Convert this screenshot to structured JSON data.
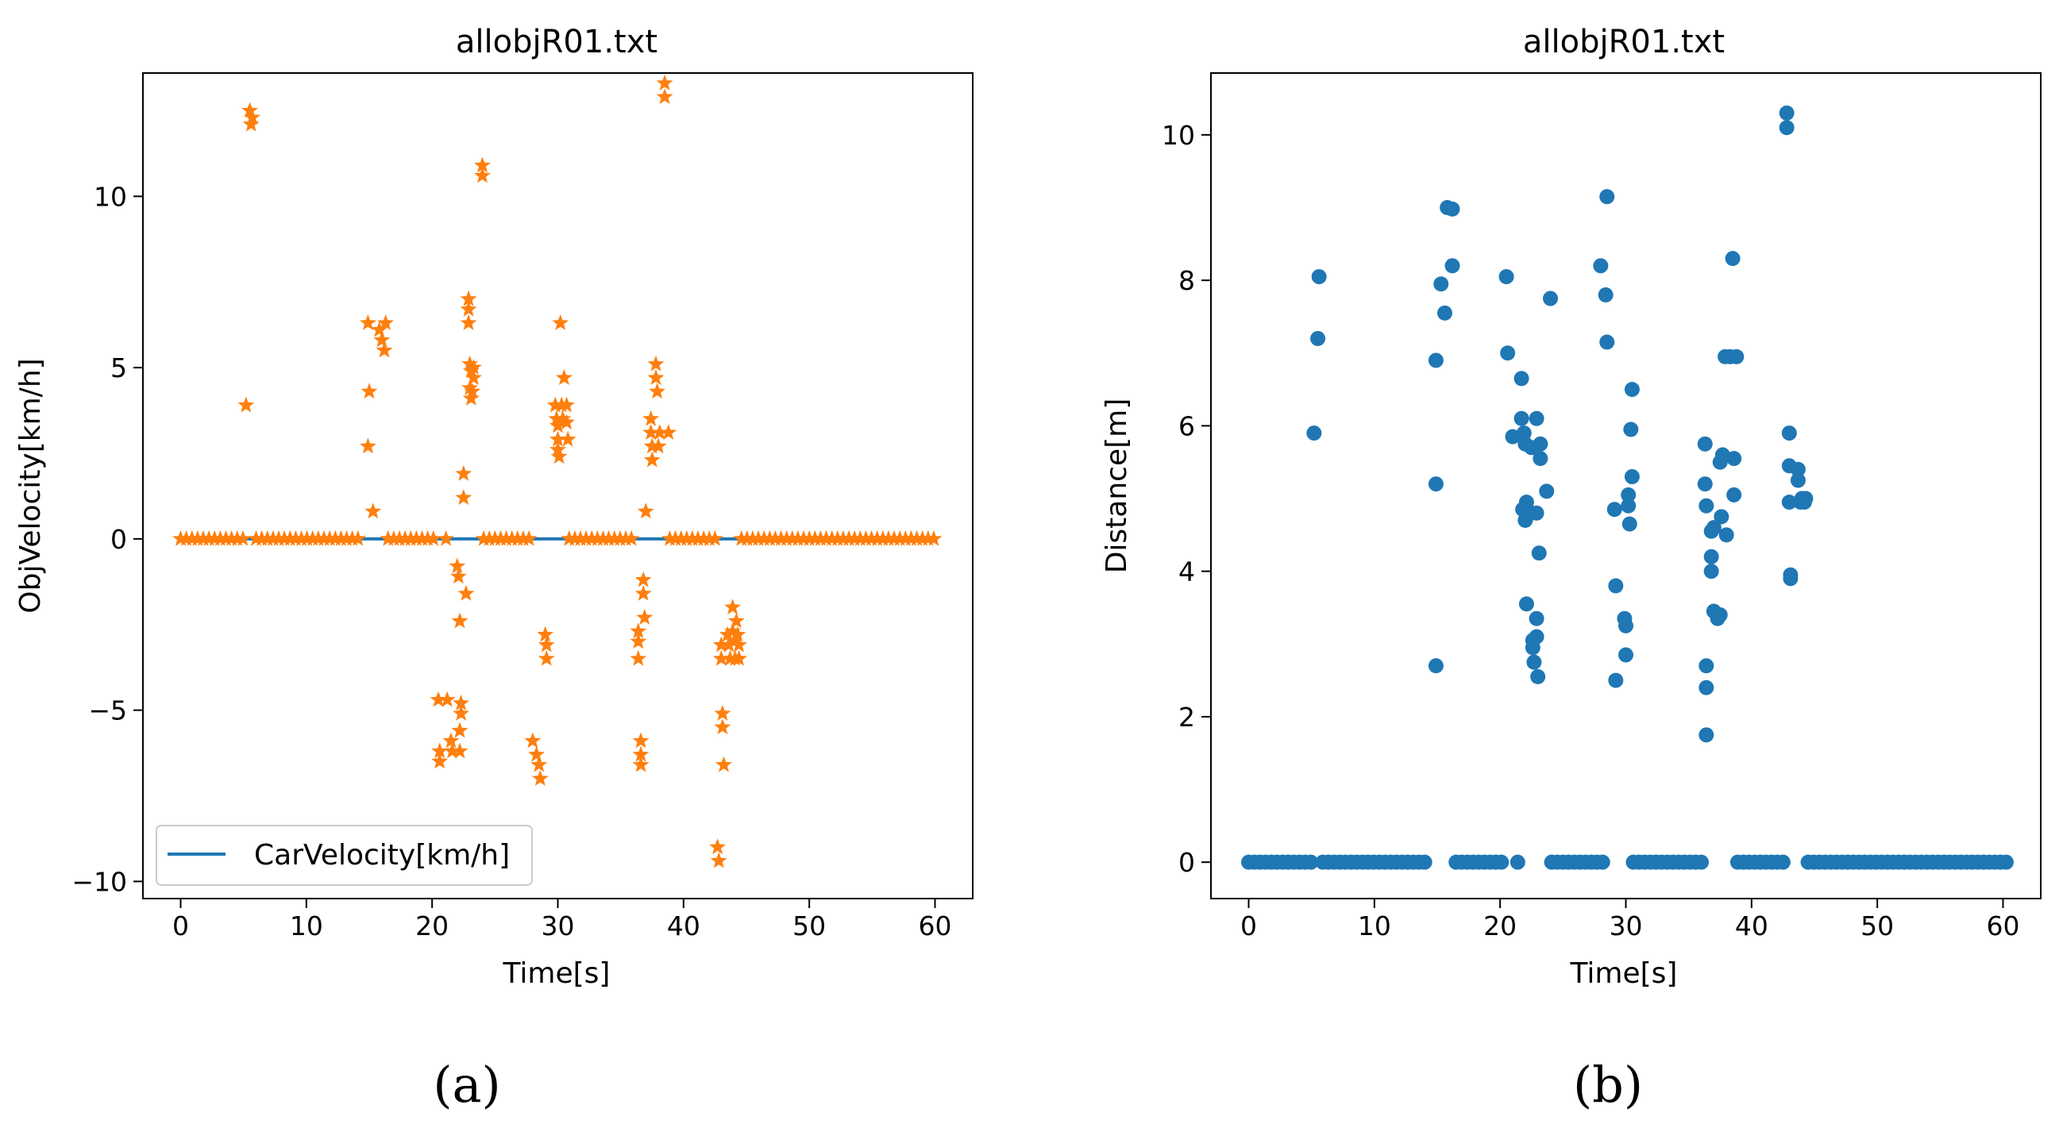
{
  "figure": {
    "panel_labels": [
      "(a)",
      "(b)"
    ]
  },
  "chart_data": [
    {
      "type": "scatter",
      "title": "allobjR01.txt",
      "xlabel": "Time[s]",
      "ylabel": "ObjVelocity[km/h]",
      "xlim": [
        -3,
        63
      ],
      "ylim": [
        -10.5,
        13.6
      ],
      "xticks": [
        0,
        10,
        20,
        30,
        40,
        50,
        60
      ],
      "xtick_labels": [
        "0",
        "10",
        "20",
        "30",
        "40",
        "50",
        "60"
      ],
      "yticks": [
        -10,
        -5,
        0,
        5,
        10
      ],
      "ytick_labels": [
        "−10",
        "−5",
        "0",
        "5",
        "10"
      ],
      "legend": {
        "placement": "lower-left",
        "entries": [
          "CarVelocity[km/h]"
        ]
      },
      "line_series": {
        "name": "CarVelocity[km/h]",
        "color": "#1f77b4",
        "x": [
          0,
          60.2
        ],
        "y": [
          0,
          0
        ]
      },
      "series": [
        {
          "marker": "star",
          "color": "#ff7f0e",
          "points": [
            [
              5.2,
              3.9
            ],
            [
              5.5,
              12.5
            ],
            [
              5.6,
              12.1
            ],
            [
              5.7,
              12.3
            ],
            [
              14.9,
              6.3
            ],
            [
              15.0,
              4.3
            ],
            [
              14.9,
              2.7
            ],
            [
              15.3,
              0.8
            ],
            [
              15.8,
              6.1
            ],
            [
              16.0,
              5.8
            ],
            [
              16.2,
              5.5
            ],
            [
              16.3,
              6.3
            ],
            [
              20.5,
              -4.7
            ],
            [
              20.6,
              -6.2
            ],
            [
              20.6,
              -6.5
            ],
            [
              21.2,
              -4.7
            ],
            [
              21.5,
              -5.9
            ],
            [
              21.6,
              -6.2
            ],
            [
              22.0,
              -0.8
            ],
            [
              22.1,
              -1.1
            ],
            [
              22.2,
              -2.4
            ],
            [
              22.3,
              -4.8
            ],
            [
              22.3,
              -5.1
            ],
            [
              22.2,
              -5.6
            ],
            [
              22.2,
              -6.2
            ],
            [
              22.5,
              1.9
            ],
            [
              22.5,
              1.2
            ],
            [
              22.7,
              -1.6
            ],
            [
              22.9,
              7.0
            ],
            [
              22.9,
              6.7
            ],
            [
              22.9,
              6.3
            ],
            [
              23.0,
              5.1
            ],
            [
              23.1,
              4.9
            ],
            [
              23.0,
              4.4
            ],
            [
              23.1,
              4.1
            ],
            [
              23.2,
              4.3
            ],
            [
              23.3,
              4.7
            ],
            [
              23.3,
              5.0
            ],
            [
              24.0,
              10.9
            ],
            [
              24.0,
              10.6
            ],
            [
              28.0,
              -5.9
            ],
            [
              28.3,
              -6.3
            ],
            [
              28.5,
              -6.6
            ],
            [
              28.6,
              -7.0
            ],
            [
              29.0,
              -2.8
            ],
            [
              29.1,
              -3.1
            ],
            [
              29.1,
              -3.5
            ],
            [
              29.9,
              3.5
            ],
            [
              29.8,
              3.9
            ],
            [
              30.0,
              3.3
            ],
            [
              30.0,
              2.9
            ],
            [
              30.0,
              2.6
            ],
            [
              30.1,
              2.4
            ],
            [
              30.2,
              6.3
            ],
            [
              30.3,
              3.9
            ],
            [
              30.4,
              3.5
            ],
            [
              30.5,
              4.7
            ],
            [
              30.7,
              3.9
            ],
            [
              30.7,
              3.4
            ],
            [
              30.8,
              2.9
            ],
            [
              36.4,
              -2.7
            ],
            [
              36.4,
              -3.0
            ],
            [
              36.4,
              -3.5
            ],
            [
              36.6,
              -5.9
            ],
            [
              36.6,
              -6.3
            ],
            [
              36.6,
              -6.6
            ],
            [
              36.8,
              -1.2
            ],
            [
              36.8,
              -1.6
            ],
            [
              36.9,
              -2.3
            ],
            [
              37.0,
              0.8
            ],
            [
              37.4,
              3.5
            ],
            [
              37.4,
              3.1
            ],
            [
              37.5,
              2.7
            ],
            [
              37.5,
              2.3
            ],
            [
              37.8,
              5.1
            ],
            [
              37.8,
              4.7
            ],
            [
              37.9,
              4.3
            ],
            [
              38.1,
              3.1
            ],
            [
              38.0,
              2.7
            ],
            [
              38.5,
              13.3
            ],
            [
              38.5,
              12.9
            ],
            [
              38.8,
              3.1
            ],
            [
              42.7,
              -9.0
            ],
            [
              42.8,
              -9.4
            ],
            [
              43.0,
              -3.1
            ],
            [
              43.0,
              -3.5
            ],
            [
              43.1,
              -5.1
            ],
            [
              43.1,
              -5.5
            ],
            [
              43.2,
              -6.6
            ],
            [
              43.5,
              -2.8
            ],
            [
              43.6,
              -3.1
            ],
            [
              43.7,
              -3.5
            ],
            [
              43.9,
              -2.0
            ],
            [
              43.9,
              -2.7
            ],
            [
              44.0,
              -3.0
            ],
            [
              44.1,
              -3.5
            ],
            [
              44.2,
              -2.4
            ],
            [
              44.3,
              -2.8
            ],
            [
              44.4,
              -3.1
            ],
            [
              44.4,
              -3.5
            ]
          ],
          "zero_runs": [
            {
              "x_start": 0,
              "x_end": 5.2,
              "step": 0.45
            },
            {
              "x_start": 6.0,
              "x_end": 14.3,
              "step": 0.45
            },
            {
              "x_start": 16.5,
              "x_end": 20.5,
              "step": 0.45
            },
            {
              "x_start": 21.1,
              "x_end": 21.1,
              "step": 0.45
            },
            {
              "x_start": 24.1,
              "x_end": 28.1,
              "step": 0.45
            },
            {
              "x_start": 30.9,
              "x_end": 36.2,
              "step": 0.45
            },
            {
              "x_start": 38.9,
              "x_end": 42.7,
              "step": 0.45
            },
            {
              "x_start": 44.6,
              "x_end": 60.2,
              "step": 0.45
            }
          ]
        }
      ]
    },
    {
      "type": "scatter",
      "title": "allobjR01.txt",
      "xlabel": "Time[s]",
      "ylabel": "Distance[m]",
      "xlim": [
        -3,
        63
      ],
      "ylim": [
        -0.5,
        10.85
      ],
      "xticks": [
        0,
        10,
        20,
        30,
        40,
        50,
        60
      ],
      "xtick_labels": [
        "0",
        "10",
        "20",
        "30",
        "40",
        "50",
        "60"
      ],
      "yticks": [
        0,
        2,
        4,
        6,
        8,
        10
      ],
      "ytick_labels": [
        "0",
        "2",
        "4",
        "6",
        "8",
        "10"
      ],
      "series": [
        {
          "marker": "circle",
          "color": "#1f77b4",
          "points": [
            [
              5.2,
              5.9
            ],
            [
              5.5,
              7.2
            ],
            [
              5.6,
              8.05
            ],
            [
              14.9,
              2.7
            ],
            [
              14.9,
              5.2
            ],
            [
              14.9,
              6.9
            ],
            [
              15.3,
              7.95
            ],
            [
              15.6,
              7.55
            ],
            [
              15.8,
              9.0
            ],
            [
              16.2,
              8.98
            ],
            [
              16.2,
              8.2
            ],
            [
              20.5,
              8.05
            ],
            [
              20.6,
              7.0
            ],
            [
              21.0,
              5.85
            ],
            [
              21.7,
              6.65
            ],
            [
              21.7,
              6.1
            ],
            [
              21.8,
              4.85
            ],
            [
              21.9,
              5.9
            ],
            [
              22.0,
              5.75
            ],
            [
              22.1,
              4.95
            ],
            [
              22.0,
              4.7
            ],
            [
              22.1,
              3.55
            ],
            [
              22.5,
              5.7
            ],
            [
              22.5,
              4.8
            ],
            [
              22.6,
              3.05
            ],
            [
              22.6,
              2.95
            ],
            [
              22.7,
              2.75
            ],
            [
              22.9,
              6.1
            ],
            [
              22.9,
              3.35
            ],
            [
              22.9,
              3.1
            ],
            [
              22.9,
              4.8
            ],
            [
              23.0,
              2.55
            ],
            [
              23.1,
              4.25
            ],
            [
              23.2,
              5.55
            ],
            [
              23.2,
              5.75
            ],
            [
              23.7,
              5.1
            ],
            [
              24.0,
              7.75
            ],
            [
              28.0,
              8.2
            ],
            [
              28.4,
              7.8
            ],
            [
              28.5,
              9.15
            ],
            [
              28.5,
              7.15
            ],
            [
              29.1,
              4.85
            ],
            [
              29.2,
              3.8
            ],
            [
              29.2,
              2.5
            ],
            [
              29.9,
              3.35
            ],
            [
              30.0,
              3.25
            ],
            [
              30.0,
              2.85
            ],
            [
              30.2,
              5.05
            ],
            [
              30.2,
              4.9
            ],
            [
              30.3,
              4.65
            ],
            [
              30.4,
              5.95
            ],
            [
              30.5,
              6.5
            ],
            [
              30.5,
              5.3
            ],
            [
              36.3,
              5.75
            ],
            [
              36.3,
              5.2
            ],
            [
              36.4,
              4.9
            ],
            [
              36.4,
              2.7
            ],
            [
              36.4,
              2.4
            ],
            [
              36.4,
              1.75
            ],
            [
              36.8,
              4.55
            ],
            [
              36.8,
              4.2
            ],
            [
              36.8,
              4.0
            ],
            [
              37.0,
              3.45
            ],
            [
              37.0,
              4.6
            ],
            [
              37.3,
              3.35
            ],
            [
              37.5,
              3.4
            ],
            [
              37.5,
              5.5
            ],
            [
              37.6,
              4.75
            ],
            [
              37.7,
              5.6
            ],
            [
              37.9,
              6.95
            ],
            [
              38.0,
              4.5
            ],
            [
              38.3,
              6.95
            ],
            [
              38.5,
              8.3
            ],
            [
              38.6,
              5.05
            ],
            [
              38.6,
              5.55
            ],
            [
              38.8,
              6.95
            ],
            [
              42.8,
              10.3
            ],
            [
              42.8,
              10.1
            ],
            [
              43.0,
              5.9
            ],
            [
              43.0,
              5.45
            ],
            [
              43.0,
              4.95
            ],
            [
              43.1,
              3.95
            ],
            [
              43.1,
              3.9
            ],
            [
              43.7,
              5.4
            ],
            [
              43.7,
              5.25
            ],
            [
              43.9,
              4.95
            ],
            [
              44.0,
              5.0
            ],
            [
              44.2,
              4.95
            ],
            [
              44.3,
              5.0
            ]
          ],
          "zero_runs": [
            {
              "x_start": 0,
              "x_end": 5.0,
              "step": 0.45
            },
            {
              "x_start": 5.9,
              "x_end": 14.3,
              "step": 0.45
            },
            {
              "x_start": 16.5,
              "x_end": 20.4,
              "step": 0.45
            },
            {
              "x_start": 21.4,
              "x_end": 21.4,
              "step": 0.45
            },
            {
              "x_start": 24.1,
              "x_end": 28.3,
              "step": 0.45
            },
            {
              "x_start": 30.6,
              "x_end": 36.0,
              "step": 0.45
            },
            {
              "x_start": 38.9,
              "x_end": 42.7,
              "step": 0.45
            },
            {
              "x_start": 44.5,
              "x_end": 60.3,
              "step": 0.45
            }
          ]
        }
      ]
    }
  ]
}
